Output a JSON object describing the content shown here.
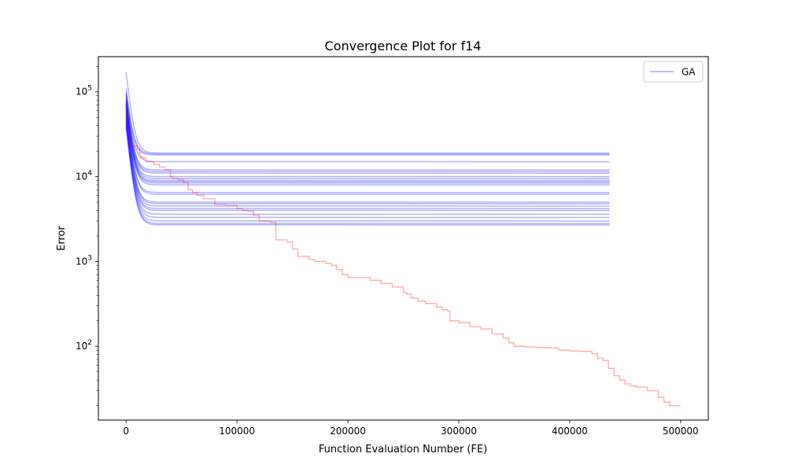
{
  "chart_data": {
    "type": "line",
    "title": "Convergence Plot for f14",
    "xlabel": "Function Evaluation Number (FE)",
    "ylabel": "Error",
    "yscale": "log",
    "xlim": [
      -25000,
      525000
    ],
    "ylim": [
      13.5,
      260000
    ],
    "xticks": [
      0,
      100000,
      200000,
      300000,
      400000,
      500000
    ],
    "xtick_labels": [
      "0",
      "100000",
      "200000",
      "300000",
      "400000",
      "500000"
    ],
    "yticks": [
      {
        "value": 100,
        "base": "10",
        "exp": "2"
      },
      {
        "value": 1000,
        "base": "10",
        "exp": "3"
      },
      {
        "value": 10000,
        "base": "10",
        "exp": "4"
      },
      {
        "value": 100000,
        "base": "10",
        "exp": "5"
      }
    ],
    "grid": false,
    "legend": {
      "position": "top-right",
      "entries": [
        {
          "label": "GA",
          "color": "#0000ff"
        }
      ]
    },
    "colors": {
      "ga": "#0000ff",
      "other": "#ff0000"
    },
    "ga_runs": {
      "x_end": 436000,
      "start_values": [
        170000,
        110000,
        100000,
        95000,
        90000,
        85000,
        80000,
        78000,
        75000,
        72000,
        70000,
        68000,
        65000,
        62000,
        60000,
        58000,
        55000,
        52000,
        50000,
        48000,
        46000,
        44000,
        42000,
        40000,
        38000
      ],
      "final_values": [
        19000,
        18500,
        18000,
        15000,
        12000,
        11500,
        11000,
        10000,
        9500,
        9000,
        8700,
        8400,
        8000,
        6500,
        6200,
        5000,
        4800,
        4500,
        4200,
        4000,
        3600,
        3300,
        3000,
        2800,
        2700
      ]
    },
    "red_series": {
      "x": [
        0,
        1000,
        2000,
        3000,
        5000,
        7000,
        10000,
        12000,
        13000,
        16000,
        18000,
        22000,
        25000,
        30000,
        35000,
        40000,
        42000,
        47000,
        52000,
        56000,
        60000,
        64000,
        70000,
        80000,
        90000,
        100000,
        105000,
        110000,
        115000,
        120000,
        130000,
        135000,
        140000,
        145000,
        150000,
        155000,
        165000,
        170000,
        180000,
        185000,
        190000,
        195000,
        200000,
        210000,
        220000,
        230000,
        240000,
        250000,
        253000,
        257000,
        263000,
        270000,
        280000,
        285000,
        290000,
        292000,
        300000,
        310000,
        320000,
        330000,
        340000,
        345000,
        350000,
        360000,
        370000,
        380000,
        390000,
        400000,
        410000,
        420000,
        425000,
        430000,
        435000,
        440000,
        445000,
        450000,
        455000,
        460000,
        470000,
        480000,
        485000,
        490000,
        500000
      ],
      "y": [
        60000,
        40000,
        30000,
        23000,
        23000,
        23000,
        21000,
        19000,
        17000,
        16500,
        15000,
        15000,
        14000,
        13000,
        12000,
        10000,
        9500,
        9200,
        8500,
        7000,
        6500,
        6000,
        5500,
        4700,
        4600,
        4200,
        4000,
        3900,
        3500,
        3000,
        2900,
        1800,
        1800,
        1700,
        1400,
        1150,
        1050,
        1000,
        950,
        900,
        800,
        700,
        650,
        650,
        600,
        550,
        500,
        430,
        410,
        370,
        340,
        320,
        290,
        270,
        260,
        200,
        190,
        170,
        160,
        140,
        125,
        110,
        100,
        98,
        97,
        96,
        90,
        88,
        87,
        82,
        72,
        68,
        55,
        45,
        40,
        36,
        34,
        33,
        30,
        25,
        22,
        20,
        20
      ]
    }
  }
}
